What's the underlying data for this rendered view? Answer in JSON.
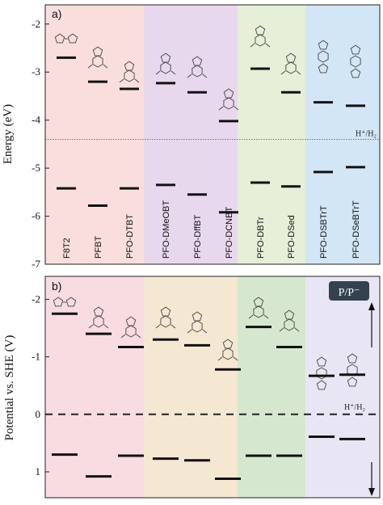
{
  "chart_data": [
    {
      "type": "bar",
      "panel_label": "a)",
      "ylabel": "Energy (eV)",
      "ylim": [
        -7,
        -1.6
      ],
      "yticks": [
        -2,
        -3,
        -4,
        -5,
        -6,
        -7
      ],
      "categories": [
        "F8T2",
        "PFBT",
        "PFO-DTBT",
        "PFO-DMeOBT",
        "PFO-DffBT",
        "PFO-DCNBT",
        "PFO-DBTr",
        "PFO-DSed",
        "PFO-DSBTrT",
        "PFO-DSeBTrT"
      ],
      "series": [
        {
          "values": [
            -2.7,
            -3.2,
            -3.35,
            -3.23,
            -3.42,
            -4.02,
            -2.93,
            -3.42,
            -3.63,
            -3.7
          ]
        },
        {
          "values": [
            -5.42,
            -5.78,
            -5.42,
            -5.35,
            -5.55,
            -5.92,
            -5.3,
            -5.38,
            -5.08,
            -4.98
          ]
        }
      ],
      "reference_line": {
        "value": -4.4,
        "label": "H⁺/H₂"
      },
      "group_colors": [
        "#f9dedd",
        "#e8d8ee",
        "#e6efd8",
        "#d3e6f6"
      ],
      "grid": false
    },
    {
      "type": "bar",
      "panel_label": "b)",
      "ylabel": "Potential vs. SHE (V)",
      "ylim": [
        1.45,
        -2.4
      ],
      "yticks": [
        -2,
        -1,
        0,
        1
      ],
      "categories": [
        "F8T2",
        "PFBT",
        "PFO-DTBT",
        "PFO-DMeOBT",
        "PFO-DffBT",
        "PFO-DCNBT",
        "PFO-DBTr",
        "PFO-DSed",
        "PFO-DSBTrT",
        "PFO-DSeBTrT"
      ],
      "series": [
        {
          "values": [
            -1.75,
            -1.4,
            -1.17,
            -1.3,
            -1.2,
            -0.78,
            -1.52,
            -1.17,
            -0.67,
            -0.69
          ]
        },
        {
          "values": [
            0.7,
            1.08,
            0.72,
            0.77,
            0.8,
            1.12,
            0.72,
            0.72,
            0.39,
            0.43
          ]
        }
      ],
      "reference_line": {
        "value": 0,
        "label": "H⁺/H₂"
      },
      "legend_label": "P/P⁻",
      "group_colors": [
        "#f8dce1",
        "#f5e8d3",
        "#d5e8cf",
        "#e8e6f4"
      ],
      "grid": false
    }
  ]
}
